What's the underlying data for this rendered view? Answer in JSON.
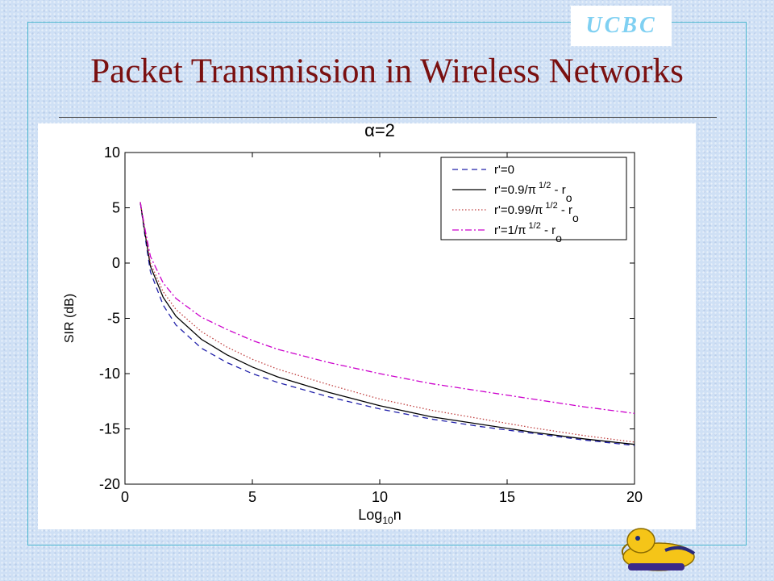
{
  "slide": {
    "title": "Packet Transmission in Wireless Networks",
    "logo_text": "UCBC"
  },
  "colors": {
    "title": "#7a1010",
    "frame": "#4fb8d0",
    "logo_text": "#7fd0f2",
    "mascot": "#f5c518"
  },
  "chart_data": {
    "type": "line",
    "title": "α=2",
    "xlabel_main": "Log",
    "xlabel_sub": "10",
    "xlabel_tail": "n",
    "ylabel": "SIR (dB)",
    "xlim": [
      0,
      20
    ],
    "ylim": [
      -20,
      10
    ],
    "xticks": [
      0,
      5,
      10,
      15,
      20
    ],
    "yticks": [
      -20,
      -15,
      -10,
      -5,
      0,
      5,
      10
    ],
    "grid": false,
    "legend_position": "top-right",
    "series": [
      {
        "name_main": "r'=0",
        "name_sup": "",
        "name_tail": "",
        "name_sub": "",
        "color": "#2222aa",
        "dash": "7,5",
        "x": [
          0.6,
          0.8,
          1,
          1.5,
          2,
          3,
          4,
          5,
          6,
          8,
          10,
          12,
          14,
          16,
          18,
          20
        ],
        "y": [
          5.5,
          2.2,
          -0.8,
          -3.8,
          -5.6,
          -7.7,
          -9.0,
          -10.0,
          -10.8,
          -12.1,
          -13.2,
          -14.1,
          -14.8,
          -15.4,
          -16.0,
          -16.5
        ]
      },
      {
        "name_main": "r'=0.9/π",
        "name_sup": "1/2",
        "name_tail": " - r",
        "name_sub": "o",
        "color": "#000000",
        "dash": "",
        "x": [
          0.6,
          0.8,
          1,
          1.5,
          2,
          3,
          4,
          5,
          6,
          8,
          10,
          12,
          14,
          16,
          18,
          20
        ],
        "y": [
          5.5,
          2.5,
          -0.3,
          -3.1,
          -4.8,
          -6.9,
          -8.3,
          -9.4,
          -10.3,
          -11.7,
          -12.9,
          -13.9,
          -14.6,
          -15.3,
          -15.9,
          -16.4
        ]
      },
      {
        "name_main": "r'=0.99/π",
        "name_sup": "1/2",
        "name_tail": " - r",
        "name_sub": "o",
        "color": "#c04040",
        "dash": "1.5,2.5",
        "x": [
          0.6,
          0.8,
          1,
          1.5,
          2,
          3,
          4,
          5,
          6,
          8,
          10,
          12,
          14,
          16,
          18,
          20
        ],
        "y": [
          5.5,
          2.7,
          0.0,
          -2.6,
          -4.2,
          -6.2,
          -7.6,
          -8.7,
          -9.6,
          -11.0,
          -12.3,
          -13.3,
          -14.1,
          -14.9,
          -15.6,
          -16.2
        ]
      },
      {
        "name_main": "r'=1/π",
        "name_sup": "1/2",
        "name_tail": " - r",
        "name_sub": "o",
        "color": "#cc00cc",
        "dash": "8,3,2,3",
        "x": [
          0.6,
          0.8,
          1,
          1.5,
          2,
          3,
          4,
          5,
          6,
          8,
          10,
          12,
          14,
          16,
          18,
          20
        ],
        "y": [
          5.5,
          2.9,
          0.6,
          -1.8,
          -3.2,
          -4.9,
          -6.0,
          -7.0,
          -7.8,
          -9.0,
          -10.0,
          -10.9,
          -11.6,
          -12.3,
          -13.0,
          -13.6
        ]
      }
    ]
  }
}
